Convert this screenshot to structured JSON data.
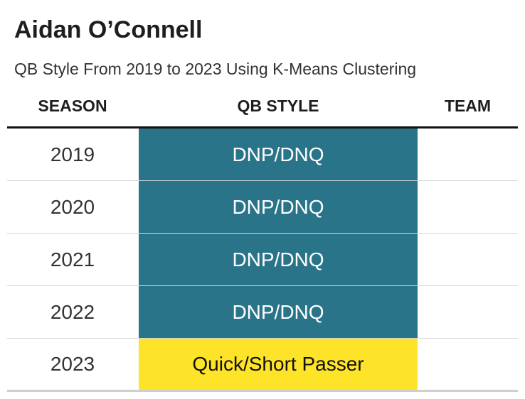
{
  "title": "Aidan O’Connell",
  "subtitle": "QB Style From 2019 to 2023 Using K-Means Clustering",
  "colors": {
    "dnp": "#2a7489",
    "quick_short": "#fde428",
    "dnp_text": "#ffffff",
    "quick_short_text": "#111111"
  },
  "chart_data": {
    "type": "table",
    "columns": [
      "SEASON",
      "QB STYLE",
      "TEAM"
    ],
    "rows": [
      {
        "season": "2019",
        "qb_style": "DNP/DNQ",
        "team": "",
        "category": "dnp"
      },
      {
        "season": "2020",
        "qb_style": "DNP/DNQ",
        "team": "",
        "category": "dnp"
      },
      {
        "season": "2021",
        "qb_style": "DNP/DNQ",
        "team": "",
        "category": "dnp"
      },
      {
        "season": "2022",
        "qb_style": "DNP/DNQ",
        "team": "",
        "category": "dnp"
      },
      {
        "season": "2023",
        "qb_style": "Quick/Short Passer",
        "team": "",
        "category": "quick_short"
      }
    ]
  }
}
